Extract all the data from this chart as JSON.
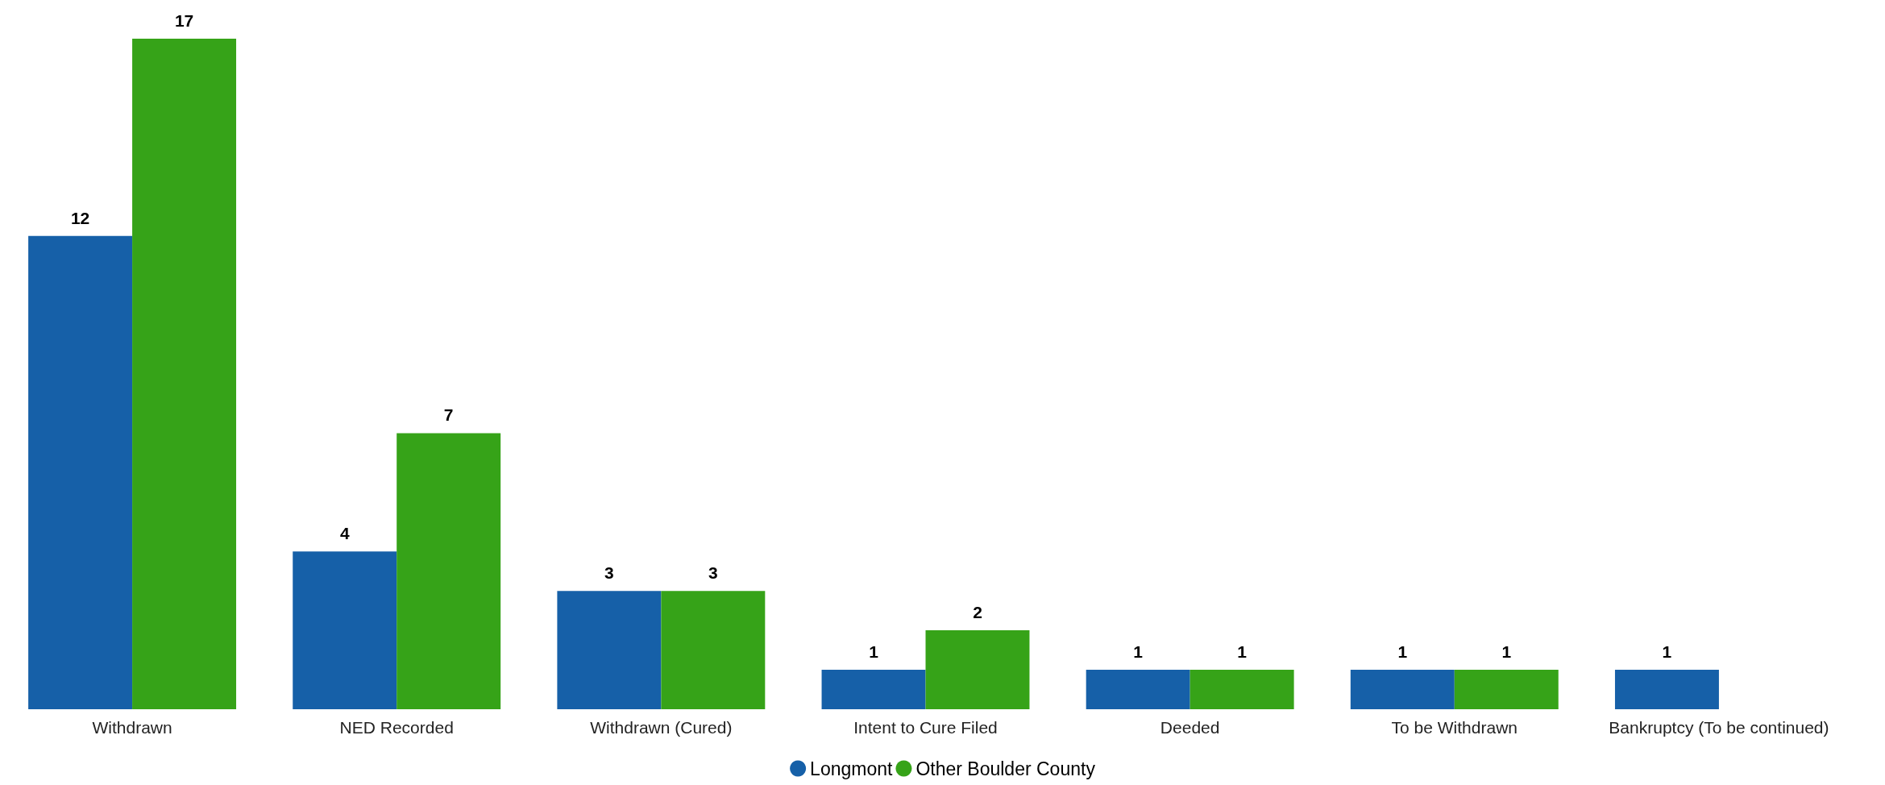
{
  "chart_data": {
    "type": "bar",
    "categories": [
      "Withdrawn",
      "NED Recorded",
      "Withdrawn (Cured)",
      "Intent to Cure Filed",
      "Deeded",
      "To be Withdrawn",
      "Bankruptcy (To be continued)"
    ],
    "series": [
      {
        "name": "Longmont",
        "color": "#1660a8",
        "values": [
          12,
          4,
          3,
          1,
          1,
          1,
          1
        ]
      },
      {
        "name": "Other Boulder County",
        "color": "#36a318",
        "values": [
          17,
          7,
          3,
          2,
          1,
          1,
          null
        ]
      }
    ],
    "data_labels": true,
    "legend": "bottom",
    "grid": false
  }
}
